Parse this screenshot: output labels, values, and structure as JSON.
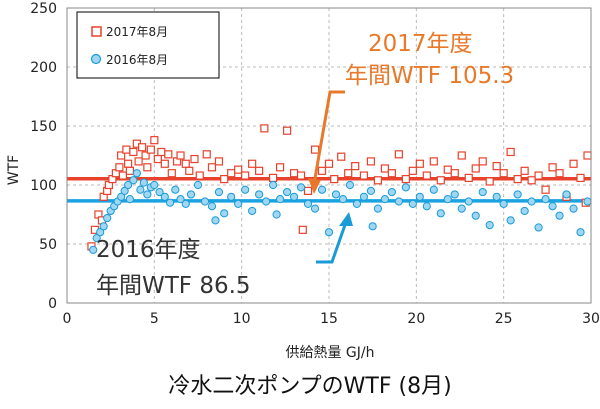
{
  "chart_data": {
    "type": "scatter",
    "title": "冷水二次ポンプのWTF (8月)",
    "xlabel": "供給熱量 GJ/h",
    "ylabel": "WTF",
    "xlim": [
      0,
      30
    ],
    "ylim": [
      0,
      250
    ],
    "x_ticks": [
      "0",
      "5",
      "10",
      "15",
      "20",
      "25",
      "30"
    ],
    "y_ticks": [
      "0",
      "50",
      "100",
      "150",
      "200",
      "250"
    ],
    "grid": "dashed",
    "legend_position": "top-left",
    "series": [
      {
        "name": "2017年8月",
        "marker": "square",
        "color": "#e8412c",
        "annual_wtf": 105.3,
        "points": [
          [
            1.4,
            48
          ],
          [
            1.6,
            62
          ],
          [
            1.8,
            75
          ],
          [
            2.0,
            70
          ],
          [
            2.1,
            90
          ],
          [
            2.3,
            95
          ],
          [
            2.4,
            100
          ],
          [
            2.6,
            105
          ],
          [
            2.8,
            110
          ],
          [
            3.0,
            115
          ],
          [
            3.1,
            125
          ],
          [
            3.2,
            108
          ],
          [
            3.4,
            130
          ],
          [
            3.5,
            118
          ],
          [
            3.6,
            112
          ],
          [
            3.8,
            128
          ],
          [
            4.0,
            135
          ],
          [
            4.1,
            120
          ],
          [
            4.3,
            132
          ],
          [
            4.5,
            125
          ],
          [
            4.6,
            115
          ],
          [
            4.8,
            130
          ],
          [
            5.0,
            138
          ],
          [
            5.2,
            122
          ],
          [
            5.4,
            128
          ],
          [
            5.6,
            118
          ],
          [
            5.8,
            126
          ],
          [
            6.0,
            110
          ],
          [
            6.3,
            120
          ],
          [
            6.5,
            125
          ],
          [
            6.8,
            118
          ],
          [
            7.0,
            112
          ],
          [
            7.3,
            122
          ],
          [
            7.6,
            108
          ],
          [
            8.0,
            126
          ],
          [
            8.3,
            115
          ],
          [
            8.7,
            120
          ],
          [
            9.0,
            105
          ],
          [
            9.4,
            110
          ],
          [
            9.8,
            113
          ],
          [
            10.2,
            108
          ],
          [
            10.6,
            118
          ],
          [
            11.0,
            112
          ],
          [
            11.3,
            148
          ],
          [
            11.8,
            106
          ],
          [
            12.2,
            115
          ],
          [
            12.6,
            146
          ],
          [
            13.0,
            110
          ],
          [
            13.4,
            108
          ],
          [
            13.8,
            95
          ],
          [
            14.2,
            130
          ],
          [
            14.6,
            112
          ],
          [
            15.0,
            118
          ],
          [
            15.3,
            105
          ],
          [
            15.7,
            124
          ],
          [
            16.1,
            110
          ],
          [
            16.5,
            116
          ],
          [
            17.0,
            108
          ],
          [
            17.4,
            120
          ],
          [
            17.8,
            104
          ],
          [
            18.2,
            114
          ],
          [
            18.6,
            110
          ],
          [
            19.0,
            126
          ],
          [
            19.4,
            105
          ],
          [
            19.8,
            112
          ],
          [
            20.2,
            118
          ],
          [
            20.6,
            108
          ],
          [
            21.0,
            120
          ],
          [
            21.4,
            104
          ],
          [
            21.8,
            113
          ],
          [
            22.2,
            110
          ],
          [
            22.6,
            125
          ],
          [
            23.0,
            106
          ],
          [
            23.4,
            114
          ],
          [
            23.8,
            120
          ],
          [
            24.2,
            103
          ],
          [
            24.6,
            116
          ],
          [
            25.0,
            110
          ],
          [
            25.4,
            128
          ],
          [
            25.8,
            105
          ],
          [
            26.2,
            112
          ],
          [
            26.6,
            104
          ],
          [
            27.0,
            108
          ],
          [
            27.4,
            96
          ],
          [
            27.8,
            115
          ],
          [
            28.2,
            110
          ],
          [
            28.6,
            90
          ],
          [
            29.0,
            118
          ],
          [
            29.4,
            106
          ],
          [
            29.8,
            125
          ],
          [
            13.5,
            62
          ],
          [
            29.7,
            85
          ]
        ]
      },
      {
        "name": "2016年8月",
        "marker": "circle",
        "color": "#1a9bd7",
        "annual_wtf": 86.5,
        "points": [
          [
            1.5,
            45
          ],
          [
            1.7,
            55
          ],
          [
            1.9,
            60
          ],
          [
            2.1,
            65
          ],
          [
            2.3,
            72
          ],
          [
            2.5,
            78
          ],
          [
            2.7,
            82
          ],
          [
            2.9,
            86
          ],
          [
            3.1,
            90
          ],
          [
            3.3,
            95
          ],
          [
            3.5,
            100
          ],
          [
            3.6,
            88
          ],
          [
            3.8,
            104
          ],
          [
            4.0,
            110
          ],
          [
            4.2,
            96
          ],
          [
            4.4,
            102
          ],
          [
            4.6,
            92
          ],
          [
            4.8,
            98
          ],
          [
            5.0,
            100
          ],
          [
            5.3,
            94
          ],
          [
            5.6,
            90
          ],
          [
            5.9,
            85
          ],
          [
            6.2,
            96
          ],
          [
            6.5,
            88
          ],
          [
            6.8,
            84
          ],
          [
            7.1,
            92
          ],
          [
            7.5,
            100
          ],
          [
            7.9,
            86
          ],
          [
            8.3,
            82
          ],
          [
            8.7,
            94
          ],
          [
            9.0,
            76
          ],
          [
            9.4,
            90
          ],
          [
            9.8,
            84
          ],
          [
            10.2,
            96
          ],
          [
            10.6,
            78
          ],
          [
            11.0,
            92
          ],
          [
            11.4,
            86
          ],
          [
            11.8,
            100
          ],
          [
            12.2,
            88
          ],
          [
            12.6,
            94
          ],
          [
            13.0,
            90
          ],
          [
            13.4,
            98
          ],
          [
            13.8,
            84
          ],
          [
            14.2,
            80
          ],
          [
            14.6,
            96
          ],
          [
            15.0,
            60
          ],
          [
            15.4,
            92
          ],
          [
            15.8,
            88
          ],
          [
            16.2,
            100
          ],
          [
            16.6,
            84
          ],
          [
            17.0,
            90
          ],
          [
            17.4,
            95
          ],
          [
            17.8,
            80
          ],
          [
            18.2,
            88
          ],
          [
            18.6,
            94
          ],
          [
            19.0,
            86
          ],
          [
            19.4,
            98
          ],
          [
            19.8,
            84
          ],
          [
            20.2,
            90
          ],
          [
            20.6,
            82
          ],
          [
            21.0,
            96
          ],
          [
            21.4,
            76
          ],
          [
            21.8,
            88
          ],
          [
            22.2,
            92
          ],
          [
            22.6,
            80
          ],
          [
            23.0,
            86
          ],
          [
            23.4,
            74
          ],
          [
            23.8,
            94
          ],
          [
            24.2,
            66
          ],
          [
            24.6,
            90
          ],
          [
            25.0,
            84
          ],
          [
            25.4,
            70
          ],
          [
            25.8,
            92
          ],
          [
            26.2,
            78
          ],
          [
            26.6,
            86
          ],
          [
            27.0,
            64
          ],
          [
            27.4,
            88
          ],
          [
            27.8,
            82
          ],
          [
            28.2,
            74
          ],
          [
            28.6,
            92
          ],
          [
            29.0,
            80
          ],
          [
            29.4,
            60
          ],
          [
            29.8,
            86
          ],
          [
            8.5,
            70
          ],
          [
            12.0,
            75
          ],
          [
            17.5,
            65
          ]
        ]
      }
    ],
    "annotations": [
      {
        "year": "2017年度",
        "label": "年間WTF 105.3"
      },
      {
        "year": "2016年度",
        "label": "年間WTF 86.5"
      }
    ]
  }
}
